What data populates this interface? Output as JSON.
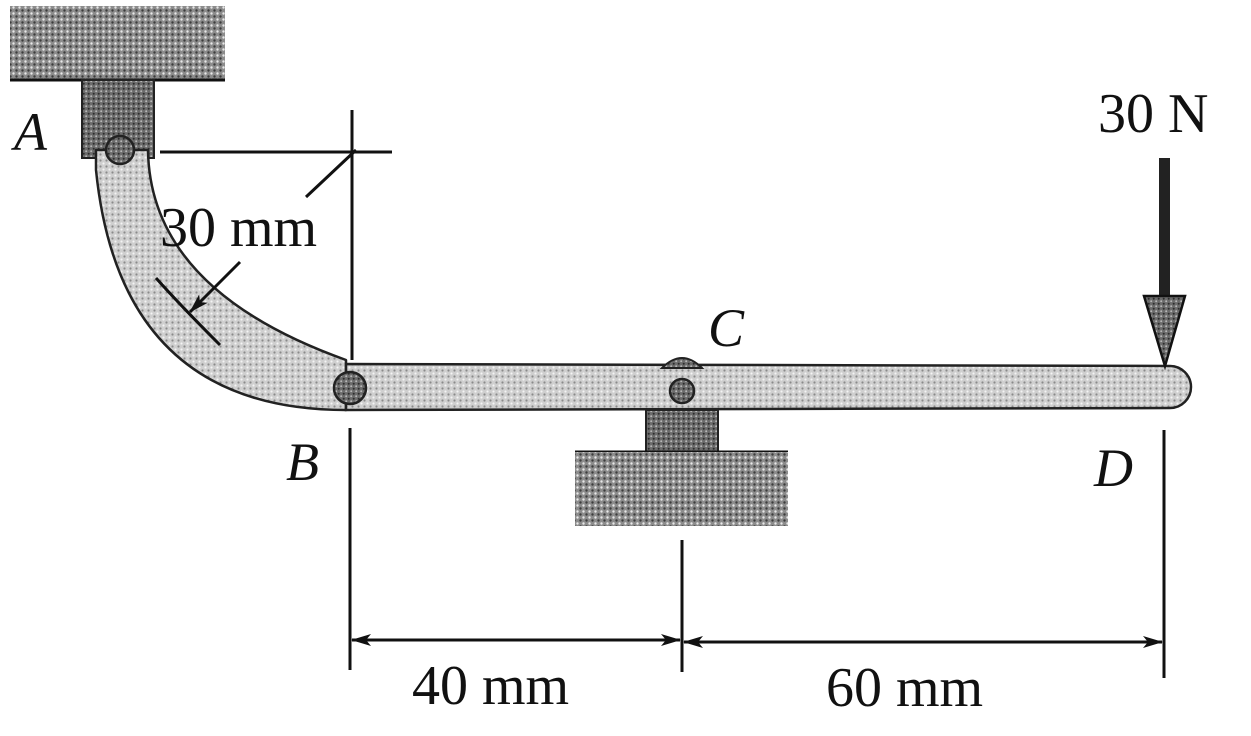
{
  "diagram": {
    "points": {
      "A": "A",
      "B": "B",
      "C": "C",
      "D": "D"
    },
    "force_label": "30 N",
    "radius_label": "30 mm",
    "dim_BC_label": "40 mm",
    "dim_CD_label": "60 mm"
  },
  "colors": {
    "ink": "#111111",
    "support_fill": "#9a9a9a",
    "member_fill": "#c9c9c9",
    "pin_fill": "#7a7a7a"
  }
}
